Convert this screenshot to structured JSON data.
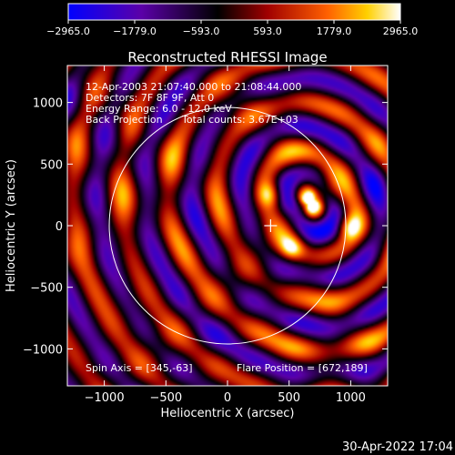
{
  "colorbar": {
    "ticks": [
      "-2965.0",
      "-1779.0",
      "-593.0",
      "593.0",
      "1779.0",
      "2965.0"
    ],
    "tick_values": [
      -2965,
      -1779,
      -593,
      593,
      1779,
      2965
    ],
    "colors": [
      "#0000ff",
      "#5b00a8",
      "#000000",
      "#a00000",
      "#ff6000",
      "#ffd000",
      "#ffffff"
    ]
  },
  "chart_data": {
    "type": "heatmap",
    "title": "Reconstructed RHESSI Image",
    "xlabel": "Heliocentric X (arcsec)",
    "ylabel": "Heliocentric Y (arcsec)",
    "xlim": [
      -1300,
      1300
    ],
    "ylim": [
      -1300,
      1300
    ],
    "xticks": [
      -1000,
      -500,
      0,
      500,
      1000
    ],
    "yticks": [
      -1000,
      -500,
      0,
      500,
      1000
    ],
    "x_tick_labels": [
      "−1000",
      "−500",
      "0",
      "500",
      "1000"
    ],
    "y_tick_labels": [
      "−1000",
      "−500",
      "0",
      "500",
      "1000"
    ],
    "color_range": [
      -2965.0,
      2965.0
    ],
    "flare_position": [
      672,
      189
    ],
    "marker_position": [
      350,
      0
    ],
    "solar_limb_radius": 960,
    "bright_sources": [
      {
        "x": 680,
        "y": 190,
        "v": 2800
      },
      {
        "x": 350,
        "y": 250,
        "v": 2100
      },
      {
        "x": 520,
        "y": -190,
        "v": 2300
      },
      {
        "x": 980,
        "y": -10,
        "v": 2200
      }
    ],
    "annotations": {
      "time": "12-Apr-2003 21:07:40.000 to 21:08:44.000",
      "detectors": "Detectors: 7F 8F 9F, Att 0",
      "energy": "Energy Range: 6.0 - 12.0 keV",
      "method": "Back Projection",
      "counts": "Total counts: 3.67E+03",
      "spin_axis": "Spin Axis = [345,-63]",
      "flare": "Flare Position = [672,189]"
    }
  },
  "footer": {
    "timestamp": "30-Apr-2022 17:04"
  }
}
